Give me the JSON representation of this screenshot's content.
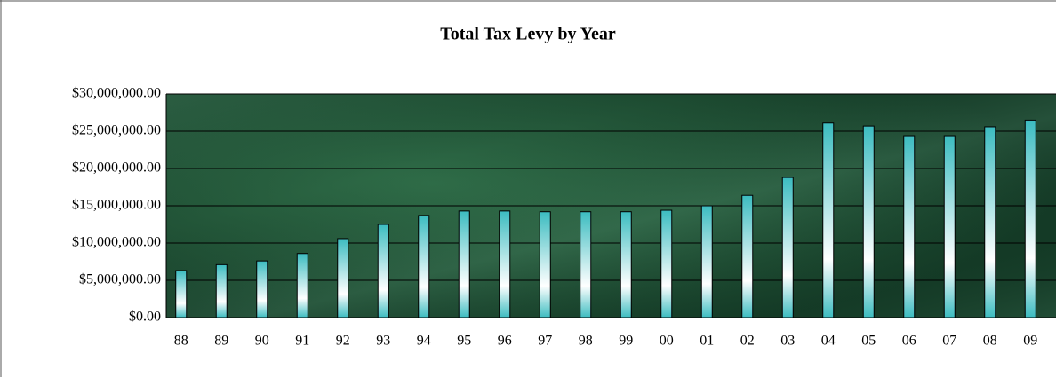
{
  "chart_data": {
    "type": "bar",
    "title": "Total Tax Levy by Year",
    "categories": [
      "88",
      "89",
      "90",
      "91",
      "92",
      "93",
      "94",
      "95",
      "96",
      "97",
      "98",
      "99",
      "00",
      "01",
      "02",
      "03",
      "04",
      "05",
      "06",
      "07",
      "08",
      "09"
    ],
    "values": [
      6300000,
      7100000,
      7600000,
      8600000,
      10600000,
      12500000,
      13700000,
      14300000,
      14300000,
      14200000,
      14200000,
      14200000,
      14400000,
      15000000,
      16400000,
      18800000,
      26100000,
      25700000,
      24400000,
      24400000,
      25600000,
      26500000
    ],
    "color": "#3cbcc0",
    "ylim": [
      0,
      30000000
    ],
    "yticks": [
      {
        "value": 0,
        "label": "$0.00"
      },
      {
        "value": 5000000,
        "label": "$5,000,000.00"
      },
      {
        "value": 10000000,
        "label": "$10,000,000.00"
      },
      {
        "value": 15000000,
        "label": "$15,000,000.00"
      },
      {
        "value": 20000000,
        "label": "$20,000,000.00"
      },
      {
        "value": 25000000,
        "label": "$25,000,000.00"
      },
      {
        "value": 30000000,
        "label": "$30,000,000.00"
      }
    ],
    "grid": true
  }
}
